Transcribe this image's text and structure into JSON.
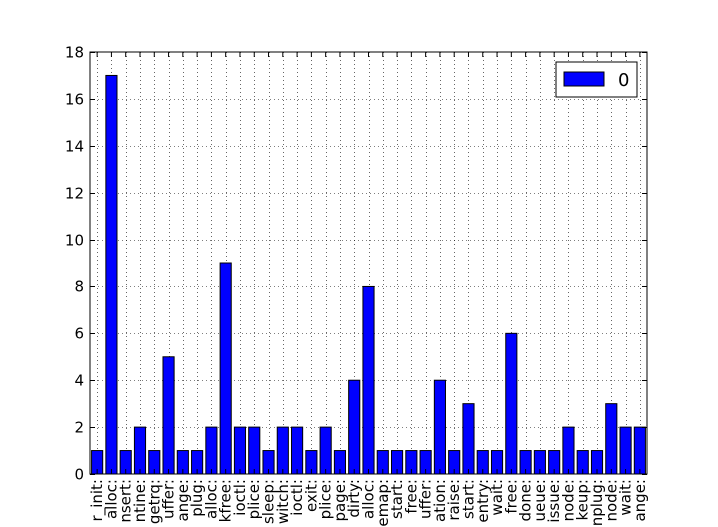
{
  "chart_data": {
    "type": "bar",
    "title": "",
    "xlabel": "",
    "ylabel": "",
    "ylim": [
      0,
      18
    ],
    "yticks": [
      0,
      2,
      4,
      6,
      8,
      10,
      12,
      14,
      16,
      18
    ],
    "grid": true,
    "legend": {
      "placement": "top-right",
      "entries": [
        "0"
      ]
    },
    "bar_color": "#0000ff",
    "categories": [
      "r_init:",
      "alloc:",
      "nsert:",
      "ntine:",
      "getrq:",
      "uffer:",
      "ange:",
      "plug:",
      "alloc:",
      "kfree:",
      "ioctl:",
      "plice:",
      "sleep:",
      "witch:",
      "ioctl:",
      "exit:",
      "plice:",
      "page:",
      "dirty:",
      "alloc:",
      "emap:",
      "start:",
      "free:",
      "uffer:",
      "ation:",
      "raise:",
      "start:",
      "entry:",
      "wait:",
      "free:",
      "done:",
      "ueue:",
      "issue:",
      "node:",
      "keup:",
      "nplug:",
      "node:",
      "wait:",
      "ange:"
    ],
    "series": [
      {
        "name": "0",
        "values": [
          1,
          17,
          1,
          2,
          1,
          5,
          1,
          1,
          2,
          9,
          2,
          2,
          1,
          2,
          2,
          1,
          2,
          1,
          4,
          8,
          1,
          1,
          1,
          1,
          4,
          1,
          3,
          1,
          1,
          6,
          1,
          1,
          1,
          2,
          1,
          1,
          3,
          2,
          2
        ]
      }
    ]
  }
}
